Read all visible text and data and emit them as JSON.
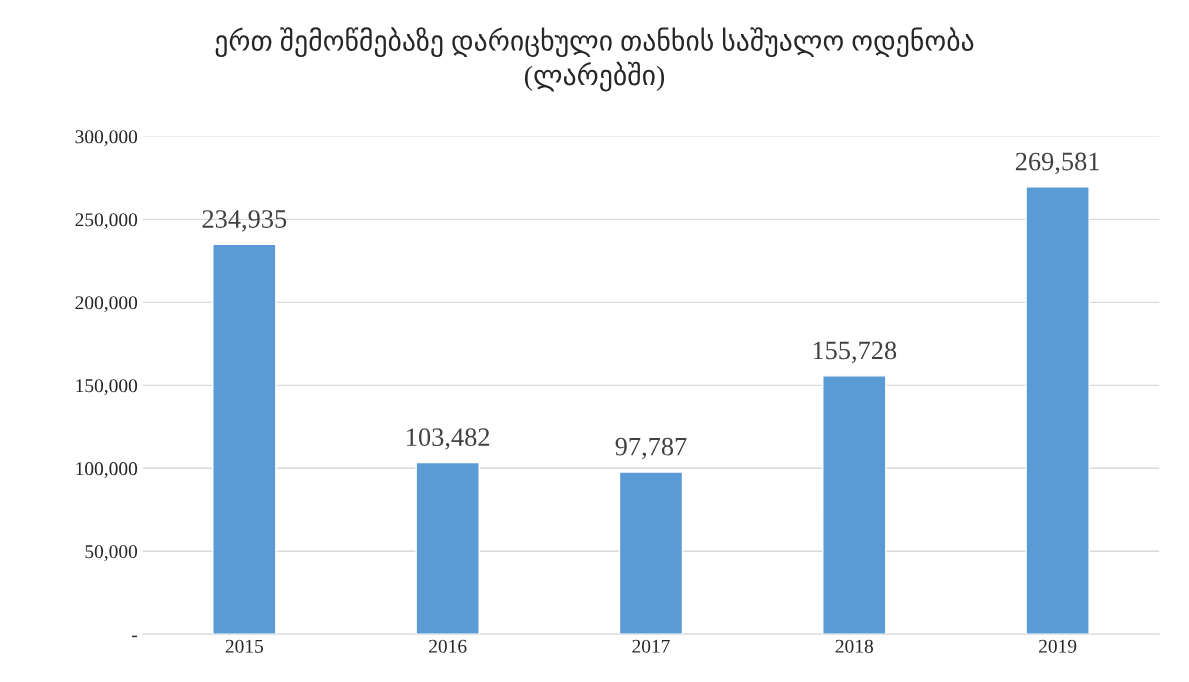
{
  "chart_data": {
    "type": "bar",
    "title": "ერთ შემოწმებაზე დარიცხული თანხის საშუალო ოდენობა\n(ლარებში)",
    "categories": [
      "2015",
      "2016",
      "2017",
      "2018",
      "2019"
    ],
    "values": [
      234935,
      103482,
      97787,
      155728,
      269581
    ],
    "value_labels": [
      "234,935",
      "103,482",
      "97,787",
      "155,728",
      "269,581"
    ],
    "color": "#5b9bd5",
    "ylim": [
      0,
      300000
    ],
    "yticks": [
      {
        "value": 0,
        "label": "-"
      },
      {
        "value": 50000,
        "label": "50,000"
      },
      {
        "value": 100000,
        "label": "100,000"
      },
      {
        "value": 150000,
        "label": "150,000"
      },
      {
        "value": 200000,
        "label": "200,000"
      },
      {
        "value": 250000,
        "label": "250,000"
      },
      {
        "value": 300000,
        "label": "300,000"
      }
    ],
    "grid": "y"
  }
}
